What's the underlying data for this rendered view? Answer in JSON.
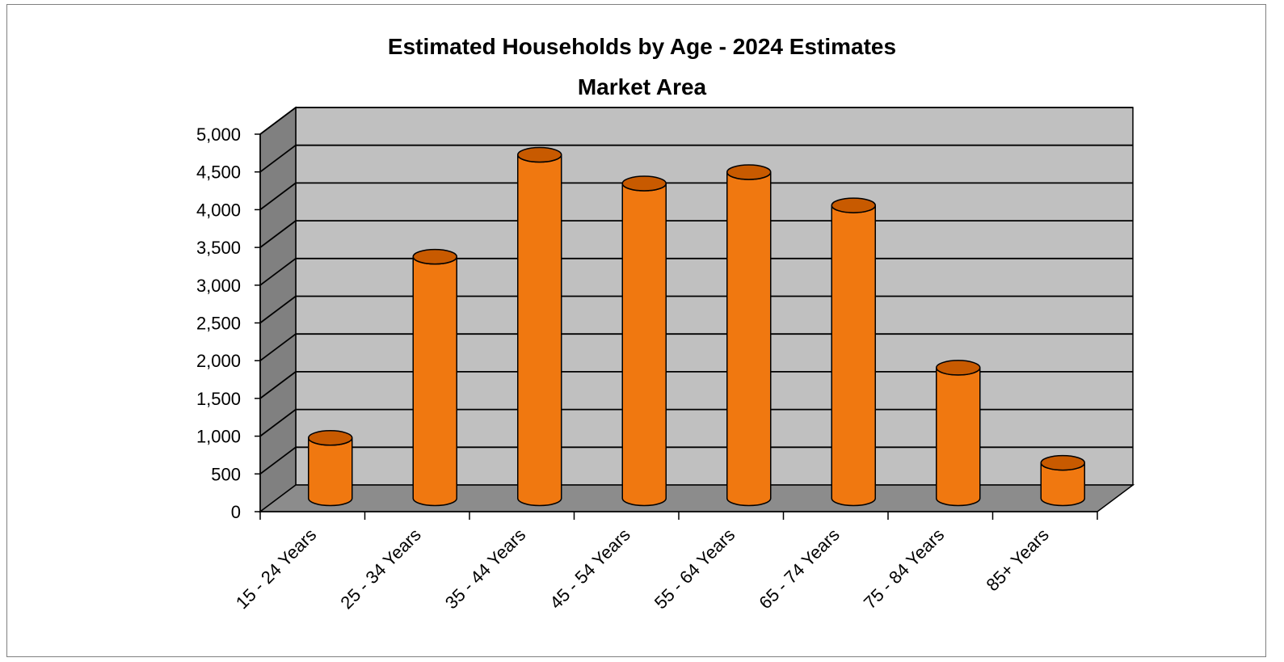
{
  "chart_data": {
    "type": "bar",
    "title": "Estimated Households by Age - 2024 Estimates",
    "subtitle": "Market Area",
    "xlabel": "",
    "ylabel": "",
    "categories": [
      "15 - 24 Years",
      "25 - 34 Years",
      "35 - 44 Years",
      "45 - 54 Years",
      "55 - 64 Years",
      "65 - 74 Years",
      "75 - 84 Years",
      "85+ Years"
    ],
    "values": [
      800,
      3200,
      4550,
      4170,
      4320,
      3880,
      1730,
      470
    ],
    "ylim": [
      0,
      5000
    ],
    "yticks": [
      "0",
      "500",
      "1,000",
      "1,500",
      "2,000",
      "2,500",
      "3,000",
      "3,500",
      "4,000",
      "4,500",
      "5,000"
    ],
    "grid": true,
    "legend": "none",
    "colors": {
      "bar": "#f07810",
      "bar_top": "#c85a00",
      "back_wall": "#c0c0c0",
      "side_wall": "#808080",
      "floor": "#8c8c8c",
      "gridline": "#000000"
    }
  }
}
